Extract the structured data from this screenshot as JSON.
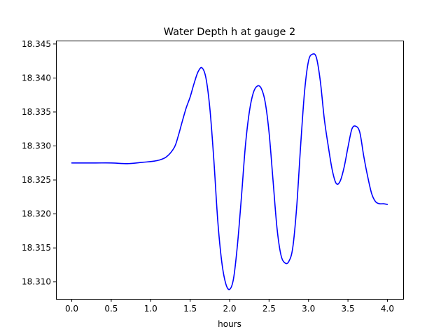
{
  "chart_data": {
    "type": "line",
    "title": "Water Depth h at gauge 2",
    "xlabel": "hours",
    "ylabel": "",
    "xlim": [
      -0.2,
      4.2
    ],
    "ylim": [
      18.3075,
      18.3455
    ],
    "grid": false,
    "x_ticks": [
      0.0,
      0.5,
      1.0,
      1.5,
      2.0,
      2.5,
      3.0,
      3.5,
      4.0
    ],
    "x_tick_labels": [
      "0.0",
      "0.5",
      "1.0",
      "1.5",
      "2.0",
      "2.5",
      "3.0",
      "3.5",
      "4.0"
    ],
    "y_ticks": [
      18.31,
      18.315,
      18.32,
      18.325,
      18.33,
      18.335,
      18.34,
      18.345
    ],
    "y_tick_labels": [
      "18.310",
      "18.315",
      "18.320",
      "18.325",
      "18.330",
      "18.335",
      "18.340",
      "18.345"
    ],
    "series": [
      {
        "color": "#0000ff",
        "x": [
          0.0,
          0.3,
          0.5,
          0.72,
          0.9,
          1.0,
          1.1,
          1.2,
          1.3,
          1.35,
          1.4,
          1.45,
          1.5,
          1.55,
          1.6,
          1.65,
          1.7,
          1.75,
          1.8,
          1.85,
          1.9,
          1.95,
          2.0,
          2.05,
          2.1,
          2.15,
          2.2,
          2.25,
          2.3,
          2.35,
          2.4,
          2.45,
          2.5,
          2.55,
          2.6,
          2.65,
          2.7,
          2.75,
          2.8,
          2.85,
          2.9,
          2.95,
          3.0,
          3.05,
          3.1,
          3.15,
          3.2,
          3.25,
          3.3,
          3.35,
          3.4,
          3.45,
          3.5,
          3.55,
          3.6,
          3.65,
          3.7,
          3.75,
          3.8,
          3.85,
          3.9,
          3.95,
          4.0
        ],
        "y": [
          18.3275,
          18.3275,
          18.3275,
          18.3274,
          18.3276,
          18.3277,
          18.3279,
          18.3284,
          18.3298,
          18.3315,
          18.3336,
          18.3356,
          18.3372,
          18.3392,
          18.3409,
          18.3415,
          18.34,
          18.3355,
          18.328,
          18.319,
          18.313,
          18.3098,
          18.3089,
          18.3105,
          18.3155,
          18.3225,
          18.33,
          18.335,
          18.3378,
          18.3388,
          18.3385,
          18.3365,
          18.332,
          18.325,
          18.318,
          18.314,
          18.3128,
          18.313,
          18.315,
          18.321,
          18.33,
          18.338,
          18.3425,
          18.3435,
          18.343,
          18.3395,
          18.334,
          18.33,
          18.3265,
          18.3245,
          18.3248,
          18.3268,
          18.3298,
          18.3325,
          18.3329,
          18.332,
          18.3285,
          18.3255,
          18.323,
          18.3218,
          18.3215,
          18.3215,
          18.3214
        ]
      }
    ]
  }
}
